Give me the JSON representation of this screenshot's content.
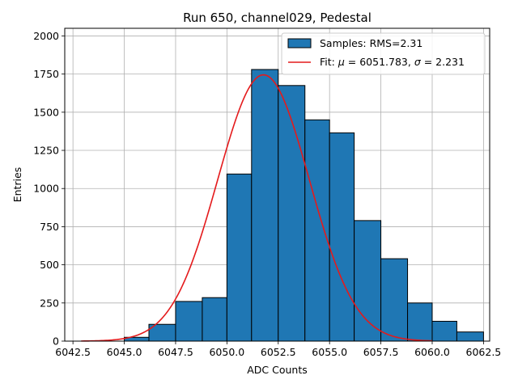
{
  "chart_data": {
    "type": "bar",
    "title": "Run 650, channel029, Pedestal",
    "xlabel": "ADC Counts",
    "ylabel": "Entries",
    "xlim": [
      6042.1,
      6062.8
    ],
    "ylim": [
      0,
      2050
    ],
    "x_ticks": [
      6042.5,
      6045.0,
      6047.5,
      6050.0,
      6052.5,
      6055.0,
      6057.5,
      6060.0,
      6062.5
    ],
    "x_tick_labels": [
      "6042.5",
      "6045.0",
      "6047.5",
      "6050.0",
      "6052.5",
      "6055.0",
      "6057.5",
      "6060.0",
      "6062.5"
    ],
    "y_ticks": [
      0,
      250,
      500,
      750,
      1000,
      1250,
      1500,
      1750,
      2000
    ],
    "y_tick_labels": [
      "0",
      "250",
      "500",
      "750",
      "1000",
      "1250",
      "1500",
      "1750",
      "2000"
    ],
    "grid": true,
    "legend_position": "top-right",
    "histogram": {
      "name": "Samples: RMS=2.31",
      "color": "#1f77b4",
      "edge_color": "#000000",
      "bins": [
        {
          "x0": 6045.0,
          "x1": 6046.2,
          "value": 25
        },
        {
          "x0": 6046.2,
          "x1": 6047.5,
          "value": 110
        },
        {
          "x0": 6047.5,
          "x1": 6048.8,
          "value": 260
        },
        {
          "x0": 6048.8,
          "x1": 6050.0,
          "value": 285
        },
        {
          "x0": 6050.0,
          "x1": 6051.2,
          "value": 1095
        },
        {
          "x0": 6051.2,
          "x1": 6052.5,
          "value": 1780
        },
        {
          "x0": 6052.5,
          "x1": 6053.8,
          "value": 1675
        },
        {
          "x0": 6053.8,
          "x1": 6055.0,
          "value": 1450
        },
        {
          "x0": 6055.0,
          "x1": 6056.2,
          "value": 1365
        },
        {
          "x0": 6056.2,
          "x1": 6057.5,
          "value": 790
        },
        {
          "x0": 6057.5,
          "x1": 6058.8,
          "value": 540
        },
        {
          "x0": 6058.8,
          "x1": 6060.0,
          "value": 250
        },
        {
          "x0": 6060.0,
          "x1": 6061.2,
          "value": 130
        },
        {
          "x0": 6061.2,
          "x1": 6062.5,
          "value": 60
        }
      ]
    },
    "fit": {
      "name": "Fit: μ = 6051.783, σ = 2.231",
      "label_prefix": "Fit: ",
      "mu_symbol": "μ",
      "mu_text": " = 6051.783, ",
      "sigma_symbol": "σ",
      "sigma_text": " = 2.231",
      "color": "#e41a1c",
      "mu": 6051.783,
      "sigma": 2.231,
      "amplitude": 1745,
      "x_range": [
        6042.9,
        6060.0
      ]
    }
  }
}
